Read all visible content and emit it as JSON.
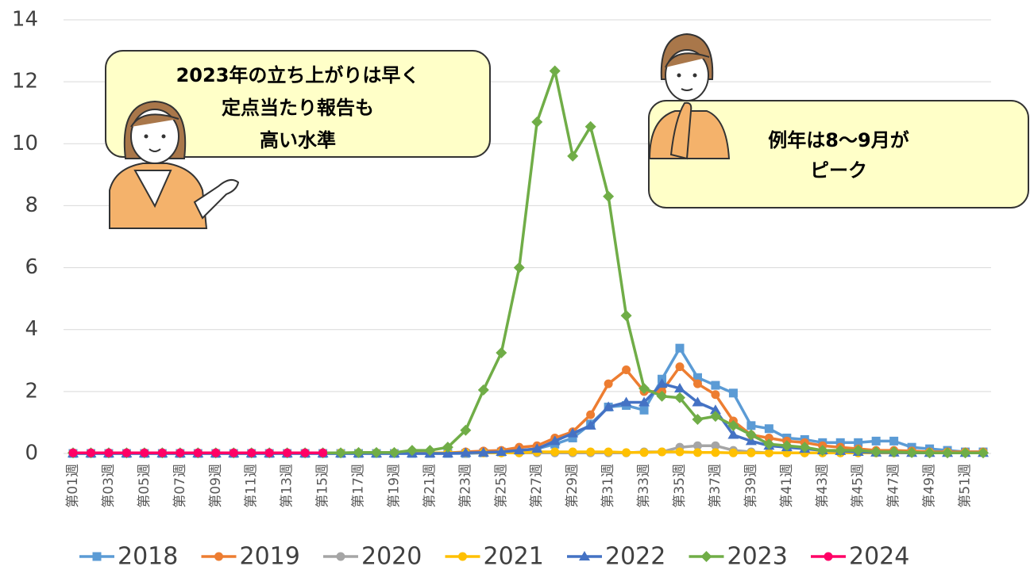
{
  "chart_data": {
    "type": "line",
    "categories": [
      "第01週",
      null,
      "第03週",
      null,
      "第05週",
      null,
      "第07週",
      null,
      "第09週",
      null,
      "第11週",
      null,
      "第13週",
      null,
      "第15週",
      null,
      "第17週",
      null,
      "第19週",
      null,
      "第21週",
      null,
      "第23週",
      null,
      "第25週",
      null,
      "第27週",
      null,
      "第29週",
      null,
      "第31週",
      null,
      "第33週",
      null,
      "第35週",
      null,
      "第37週",
      null,
      "第39週",
      null,
      "第41週",
      null,
      "第43週",
      null,
      "第45週",
      null,
      "第47週",
      null,
      "第49週",
      null,
      "第51週",
      null
    ],
    "series": [
      {
        "name": "2018",
        "color": "#5b9bd5",
        "marker": "square",
        "values": [
          0,
          0,
          0,
          0,
          0,
          0,
          0,
          0,
          0,
          0,
          0,
          0,
          0,
          0,
          0,
          0,
          0,
          0,
          0,
          0,
          0,
          0,
          0,
          0.02,
          0.05,
          0.1,
          0.15,
          0.3,
          0.5,
          0.95,
          1.5,
          1.55,
          1.4,
          2.4,
          3.4,
          2.45,
          2.2,
          1.95,
          0.9,
          0.8,
          0.5,
          0.45,
          0.35,
          0.35,
          0.35,
          0.4,
          0.4,
          0.2,
          0.15,
          0.1,
          0.05,
          0.05
        ]
      },
      {
        "name": "2019",
        "color": "#ed7d31",
        "marker": "circle",
        "values": [
          0.02,
          0.02,
          0.02,
          0.02,
          0.02,
          0.02,
          0.02,
          0.02,
          0.02,
          0.02,
          0.02,
          0.02,
          0.02,
          0.02,
          0.02,
          0.02,
          0.02,
          0.02,
          0.02,
          0.02,
          0.02,
          0.02,
          0.05,
          0.08,
          0.1,
          0.2,
          0.25,
          0.5,
          0.7,
          1.25,
          2.25,
          2.7,
          2.0,
          2.0,
          2.8,
          2.25,
          1.9,
          1.05,
          0.6,
          0.5,
          0.4,
          0.35,
          0.25,
          0.2,
          0.15,
          0.1,
          0.1,
          0.08,
          0.05,
          0.05,
          0.05,
          0.05
        ]
      },
      {
        "name": "2020",
        "color": "#a5a5a5",
        "marker": "circle",
        "values": [
          0.02,
          0.02,
          0.02,
          0.02,
          0.02,
          0.02,
          0.02,
          0.02,
          0.02,
          0.02,
          0.02,
          0.02,
          0.02,
          0.02,
          0.02,
          0.02,
          0.02,
          0.02,
          0.02,
          0.02,
          0.02,
          0.02,
          0.02,
          0.02,
          0.02,
          0.02,
          0.02,
          0.02,
          0.02,
          0.02,
          0.02,
          0.02,
          0.05,
          0.05,
          0.2,
          0.25,
          0.25,
          0.1,
          0.05,
          0.02,
          0.02,
          0.02,
          0.02,
          0.02,
          0.02,
          0.02,
          0.02,
          0.02,
          0.02,
          0.02,
          0.02,
          0.02
        ]
      },
      {
        "name": "2021",
        "color": "#ffc000",
        "marker": "circle",
        "values": [
          0.02,
          0.02,
          0.02,
          0.02,
          0.02,
          0.02,
          0.02,
          0.02,
          0.02,
          0.02,
          0.02,
          0.02,
          0.02,
          0.02,
          0.02,
          0.02,
          0.02,
          0.02,
          0.02,
          0.02,
          0.02,
          0.02,
          0.02,
          0.02,
          0.02,
          0.02,
          0.05,
          0.05,
          0.05,
          0.05,
          0.05,
          0.03,
          0.03,
          0.05,
          0.05,
          0.03,
          0.03,
          0.02,
          0.02,
          0.02,
          0.02,
          0.02,
          0.02,
          0.02,
          0.02,
          0.02,
          0.02,
          0.02,
          0.02,
          0.02,
          0.02,
          0.02
        ]
      },
      {
        "name": "2022",
        "color": "#4472c4",
        "marker": "triangle",
        "values": [
          0,
          0,
          0,
          0,
          0,
          0,
          0,
          0,
          0,
          0,
          0,
          0,
          0,
          0,
          0,
          0,
          0,
          0,
          0,
          0,
          0,
          0,
          0.02,
          0.03,
          0.05,
          0.1,
          0.15,
          0.4,
          0.65,
          0.9,
          1.5,
          1.65,
          1.65,
          2.25,
          2.1,
          1.65,
          1.4,
          0.6,
          0.4,
          0.25,
          0.2,
          0.15,
          0.1,
          0.08,
          0.05,
          0.03,
          0.03,
          0.02,
          0.02,
          0.02,
          0.02,
          0.02
        ]
      },
      {
        "name": "2023",
        "color": "#70ad47",
        "marker": "diamond",
        "values": [
          0.02,
          0.02,
          0.02,
          0.02,
          0.02,
          0.02,
          0.02,
          0.02,
          0.02,
          0.02,
          0.02,
          0.02,
          0.02,
          0.02,
          0.02,
          0.02,
          0.03,
          0.03,
          0.03,
          0.1,
          0.1,
          0.2,
          0.75,
          2.05,
          3.25,
          6.0,
          10.7,
          12.35,
          9.6,
          10.55,
          8.3,
          4.45,
          2.1,
          1.85,
          1.8,
          1.1,
          1.2,
          0.9,
          0.6,
          0.3,
          0.25,
          0.2,
          0.1,
          0.1,
          0.1,
          0.05,
          0.05,
          0.03,
          0.02,
          0.02,
          0.02,
          0.02
        ]
      },
      {
        "name": "2024",
        "color": "#ff0066",
        "marker": "circle",
        "values": [
          0.02,
          0.02,
          0.02,
          0.02,
          0.02,
          0.02,
          0.02,
          0.02,
          0.02,
          0.02,
          0.02,
          0.02,
          0.02,
          0.02,
          0.02,
          null,
          null,
          null,
          null,
          null,
          null,
          null,
          null,
          null,
          null,
          null,
          null,
          null,
          null,
          null,
          null,
          null,
          null,
          null,
          null,
          null,
          null,
          null,
          null,
          null,
          null,
          null,
          null,
          null,
          null,
          null,
          null,
          null,
          null,
          null,
          null,
          null
        ]
      }
    ],
    "ylim": [
      0,
      14
    ],
    "yticks": [
      0,
      2,
      4,
      6,
      8,
      10,
      12,
      14
    ],
    "grid": true,
    "annotations": [
      [
        "2023年の立ち上がりは早く",
        "定点当たり報告も",
        "高い水準"
      ],
      [
        "例年は8～9月が",
        "ピーク"
      ]
    ]
  }
}
